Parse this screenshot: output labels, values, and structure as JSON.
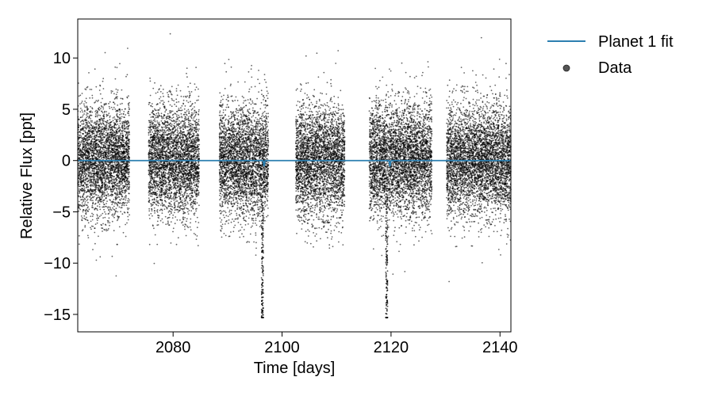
{
  "chart_data": {
    "type": "scatter",
    "title": "",
    "xlabel": "Time [days]",
    "ylabel": "Relative Flux [ppt]",
    "xlim": [
      2062.5,
      2142.0
    ],
    "ylim": [
      -16.7,
      13.8
    ],
    "xticks": [
      2080,
      2100,
      2120,
      2140
    ],
    "xtick_labels": [
      "2080",
      "2100",
      "2120",
      "2140"
    ],
    "yticks": [
      10,
      5,
      0,
      -5,
      -10,
      -15
    ],
    "ytick_labels": [
      "10",
      "5",
      "0",
      "−5",
      "−10",
      "−15"
    ],
    "grid": false,
    "legend_position": "outside-right-top",
    "series": [
      {
        "name": "Data",
        "kind": "scatter",
        "color": "#000000",
        "segments_days": [
          [
            2062.5,
            2072.0
          ],
          [
            2075.5,
            2084.8
          ],
          [
            2088.5,
            2097.5
          ],
          [
            2102.5,
            2111.5
          ],
          [
            2116.0,
            2127.5
          ],
          [
            2130.2,
            2142.0
          ]
        ],
        "typical_range_ppt": [
          -7,
          7
        ],
        "transit_times_days": [
          2096.4,
          2119.2
        ],
        "transit_min_ppt": -15.3
      },
      {
        "name": "Planet 1 fit",
        "kind": "line",
        "color": "#2c7fb0",
        "baseline_ppt": 0,
        "transit_times_days": [
          2096.7,
          2119.8
        ],
        "transit_depth_ppt": -0.6
      }
    ]
  }
}
